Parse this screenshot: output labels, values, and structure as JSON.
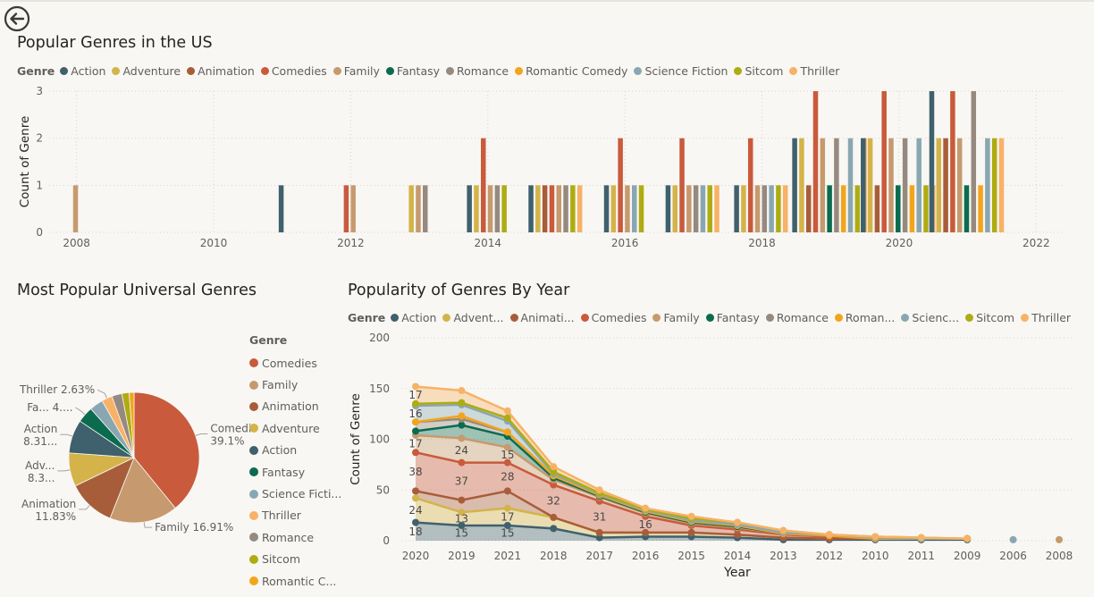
{
  "colors": {
    "Action": "#3f606d",
    "Adventure": "#d4b34a",
    "Animation": "#a85d3a",
    "Comedies": "#c95a3c",
    "Family": "#c69a6e",
    "Fantasy": "#0b6b4e",
    "Romance": "#968a80",
    "Romantic Comedy": "#f2a51c",
    "Science Fiction": "#89a7b2",
    "Sitcom": "#aeac12",
    "Thriller": "#f7b267"
  },
  "bar_chart": {
    "title": "Popular Genres in the US",
    "legend_label": "Genre",
    "legend": [
      "Action",
      "Adventure",
      "Animation",
      "Comedies",
      "Family",
      "Fantasy",
      "Romance",
      "Romantic Comedy",
      "Science Fiction",
      "Sitcom",
      "Thriller"
    ],
    "chart_data": {
      "type": "bar",
      "x_range": [
        2007.6,
        2022.4
      ],
      "x_ticks": [
        "2008",
        "2010",
        "2012",
        "2014",
        "2016",
        "2018",
        "2020",
        "2022"
      ],
      "y_ticks": [
        "0",
        "1",
        "2",
        "3"
      ],
      "ylim": [
        0,
        3
      ],
      "xlabel": "",
      "ylabel": "Count of Genre",
      "grid": true,
      "groups": [
        {
          "year": 2008,
          "bars": [
            {
              "genre": "Family",
              "value": 1
            }
          ]
        },
        {
          "year": 2011,
          "bars": [
            {
              "genre": "Action",
              "value": 1
            }
          ]
        },
        {
          "year": 2012,
          "bars": [
            {
              "genre": "Comedies",
              "value": 1
            },
            {
              "genre": "Family",
              "value": 1
            }
          ]
        },
        {
          "year": 2013,
          "bars": [
            {
              "genre": "Adventure",
              "value": 1
            },
            {
              "genre": "Family",
              "value": 1
            },
            {
              "genre": "Romance",
              "value": 1
            }
          ]
        },
        {
          "year": 2014,
          "bars": [
            {
              "genre": "Action",
              "value": 1
            },
            {
              "genre": "Adventure",
              "value": 1
            },
            {
              "genre": "Comedies",
              "value": 2
            },
            {
              "genre": "Family",
              "value": 1
            },
            {
              "genre": "Romance",
              "value": 1
            },
            {
              "genre": "Sitcom",
              "value": 1
            }
          ]
        },
        {
          "year": 2015,
          "bars": [
            {
              "genre": "Action",
              "value": 1
            },
            {
              "genre": "Adventure",
              "value": 1
            },
            {
              "genre": "Animation",
              "value": 1
            },
            {
              "genre": "Comedies",
              "value": 1
            },
            {
              "genre": "Family",
              "value": 1
            },
            {
              "genre": "Romance",
              "value": 1
            },
            {
              "genre": "Sitcom",
              "value": 1
            },
            {
              "genre": "Thriller",
              "value": 1
            }
          ]
        },
        {
          "year": 2016,
          "bars": [
            {
              "genre": "Action",
              "value": 1
            },
            {
              "genre": "Adventure",
              "value": 1
            },
            {
              "genre": "Comedies",
              "value": 2
            },
            {
              "genre": "Family",
              "value": 1
            },
            {
              "genre": "Science Fiction",
              "value": 1
            },
            {
              "genre": "Sitcom",
              "value": 1
            }
          ]
        },
        {
          "year": 2017,
          "bars": [
            {
              "genre": "Action",
              "value": 1
            },
            {
              "genre": "Adventure",
              "value": 1
            },
            {
              "genre": "Comedies",
              "value": 2
            },
            {
              "genre": "Family",
              "value": 1
            },
            {
              "genre": "Romance",
              "value": 1
            },
            {
              "genre": "Science Fiction",
              "value": 1
            },
            {
              "genre": "Sitcom",
              "value": 1
            },
            {
              "genre": "Thriller",
              "value": 1
            }
          ]
        },
        {
          "year": 2018,
          "bars": [
            {
              "genre": "Action",
              "value": 1
            },
            {
              "genre": "Adventure",
              "value": 1
            },
            {
              "genre": "Comedies",
              "value": 2
            },
            {
              "genre": "Family",
              "value": 1
            },
            {
              "genre": "Romance",
              "value": 1
            },
            {
              "genre": "Science Fiction",
              "value": 1
            },
            {
              "genre": "Sitcom",
              "value": 1
            },
            {
              "genre": "Thriller",
              "value": 1
            }
          ]
        },
        {
          "year": 2019,
          "bars": [
            {
              "genre": "Action",
              "value": 2
            },
            {
              "genre": "Adventure",
              "value": 2
            },
            {
              "genre": "Animation",
              "value": 1
            },
            {
              "genre": "Comedies",
              "value": 3
            },
            {
              "genre": "Family",
              "value": 2
            },
            {
              "genre": "Fantasy",
              "value": 1
            },
            {
              "genre": "Romance",
              "value": 2
            },
            {
              "genre": "Romantic Comedy",
              "value": 1
            },
            {
              "genre": "Science Fiction",
              "value": 2
            },
            {
              "genre": "Sitcom",
              "value": 1
            },
            {
              "genre": "Thriller",
              "value": 2
            }
          ]
        },
        {
          "year": 2020,
          "bars": [
            {
              "genre": "Action",
              "value": 2
            },
            {
              "genre": "Adventure",
              "value": 2
            },
            {
              "genre": "Animation",
              "value": 1
            },
            {
              "genre": "Comedies",
              "value": 3
            },
            {
              "genre": "Family",
              "value": 2
            },
            {
              "genre": "Fantasy",
              "value": 1
            },
            {
              "genre": "Romance",
              "value": 2
            },
            {
              "genre": "Romantic Comedy",
              "value": 1
            },
            {
              "genre": "Science Fiction",
              "value": 2
            },
            {
              "genre": "Sitcom",
              "value": 1
            },
            {
              "genre": "Thriller",
              "value": 1
            }
          ]
        },
        {
          "year": 2021,
          "bars": [
            {
              "genre": "Action",
              "value": 3
            },
            {
              "genre": "Adventure",
              "value": 2
            },
            {
              "genre": "Animation",
              "value": 2
            },
            {
              "genre": "Comedies",
              "value": 3
            },
            {
              "genre": "Family",
              "value": 2
            },
            {
              "genre": "Fantasy",
              "value": 1
            },
            {
              "genre": "Romance",
              "value": 3
            },
            {
              "genre": "Romantic Comedy",
              "value": 1
            },
            {
              "genre": "Science Fiction",
              "value": 2
            },
            {
              "genre": "Sitcom",
              "value": 2
            },
            {
              "genre": "Thriller",
              "value": 2
            }
          ]
        }
      ]
    }
  },
  "pie_chart": {
    "title": "Most Popular Universal Genres",
    "legend_label": "Genre",
    "legend_items": [
      "Comedies",
      "Family",
      "Animation",
      "Adventure",
      "Action",
      "Fantasy",
      "Science Ficti...",
      "Thriller",
      "Romance",
      "Sitcom",
      "Romantic C..."
    ],
    "chart_data": {
      "type": "pie",
      "slices": [
        {
          "genre": "Comedies",
          "value": 39.1,
          "label": "Comedies",
          "value_label": "39.1%"
        },
        {
          "genre": "Family",
          "value": 16.91,
          "label": "Family 16.91%",
          "value_label": ""
        },
        {
          "genre": "Animation",
          "value": 11.83,
          "label": "Animation",
          "value_label": "11.83%"
        },
        {
          "genre": "Adventure",
          "value": 8.3,
          "label": "Adv...",
          "value_label": "8.3..."
        },
        {
          "genre": "Action",
          "value": 8.31,
          "label": "Action",
          "value_label": "8.31..."
        },
        {
          "genre": "Fantasy",
          "value": 4.0,
          "label": "Fa... 4....",
          "value_label": ""
        },
        {
          "genre": "Science Fiction",
          "value": 3.4,
          "label": "",
          "value_label": ""
        },
        {
          "genre": "Thriller",
          "value": 2.63,
          "label": "Thriller 2.63%",
          "value_label": ""
        },
        {
          "genre": "Romance",
          "value": 2.5,
          "label": "",
          "value_label": ""
        },
        {
          "genre": "Sitcom",
          "value": 1.8,
          "label": "",
          "value_label": ""
        },
        {
          "genre": "Romantic Comedy",
          "value": 1.22,
          "label": "",
          "value_label": ""
        }
      ]
    }
  },
  "area_chart": {
    "title": "Popularity of Genres By Year",
    "legend_label": "Genre",
    "legend": [
      {
        "genre": "Action",
        "label": "Action"
      },
      {
        "genre": "Adventure",
        "label": "Advent..."
      },
      {
        "genre": "Animation",
        "label": "Animati..."
      },
      {
        "genre": "Comedies",
        "label": "Comedies"
      },
      {
        "genre": "Family",
        "label": "Family"
      },
      {
        "genre": "Fantasy",
        "label": "Fantasy"
      },
      {
        "genre": "Romance",
        "label": "Romance"
      },
      {
        "genre": "Romantic Comedy",
        "label": "Roman..."
      },
      {
        "genre": "Science Fiction",
        "label": "Scienc..."
      },
      {
        "genre": "Sitcom",
        "label": "Sitcom"
      },
      {
        "genre": "Thriller",
        "label": "Thriller"
      }
    ],
    "chart_data": {
      "type": "area",
      "stacked": true,
      "categories": [
        "2020",
        "2019",
        "2021",
        "2018",
        "2017",
        "2016",
        "2015",
        "2014",
        "2013",
        "2012",
        "2010",
        "2011",
        "2009",
        "2006",
        "2008"
      ],
      "xlabel": "Year",
      "ylabel": "Count of Genre",
      "ylim": [
        0,
        200
      ],
      "y_ticks": [
        "0",
        "50",
        "100",
        "150",
        "200"
      ],
      "grid": true,
      "series": [
        {
          "name": "Action",
          "values": [
            18,
            15,
            15,
            12,
            3,
            4,
            4,
            3,
            1,
            1,
            1,
            1,
            1,
            null,
            null
          ],
          "labels": [
            "18",
            "15",
            "15",
            "",
            "",
            "",
            "",
            "",
            "",
            "",
            "",
            "",
            "",
            "",
            ""
          ]
        },
        {
          "name": "Adventure",
          "values": [
            24,
            13,
            17,
            11,
            5,
            4,
            4,
            3,
            2,
            1,
            1,
            1,
            1,
            null,
            null
          ],
          "labels": [
            "24",
            "13",
            "17",
            "",
            "",
            "",
            "",
            "",
            "",
            "",
            "",
            "",
            "",
            "",
            ""
          ]
        },
        {
          "name": "Animation",
          "values": [
            7,
            12,
            17,
            0,
            0,
            0,
            0,
            0,
            0,
            0,
            0,
            0,
            0,
            null,
            null
          ],
          "labels": [
            "",
            "",
            "",
            "",
            "",
            "",
            "",
            "",
            "",
            "",
            "",
            "",
            "",
            "",
            ""
          ]
        },
        {
          "name": "Comedies",
          "values": [
            38,
            37,
            28,
            32,
            31,
            16,
            7,
            5,
            3,
            2,
            0,
            0,
            0,
            null,
            null
          ],
          "labels": [
            "38",
            "37",
            "28",
            "32",
            "31",
            "16",
            "",
            "",
            "",
            "",
            "",
            "",
            "",
            "",
            ""
          ]
        },
        {
          "name": "Family",
          "values": [
            17,
            24,
            15,
            5,
            4,
            3,
            2,
            2,
            1,
            1,
            0,
            0,
            0,
            null,
            1
          ],
          "labels": [
            "17",
            "24",
            "15",
            "",
            "",
            "",
            "",
            "",
            "",
            "",
            "",
            "",
            "",
            "",
            ""
          ]
        },
        {
          "name": "Fantasy",
          "values": [
            4,
            13,
            11,
            2,
            1,
            1,
            1,
            1,
            0,
            0,
            0,
            0,
            0,
            null,
            null
          ],
          "labels": [
            "",
            "",
            "",
            "",
            "",
            "",
            "",
            "",
            "",
            "",
            "",
            "",
            "",
            "",
            ""
          ]
        },
        {
          "name": "Romance",
          "values": [
            9,
            6,
            4,
            2,
            1,
            1,
            1,
            1,
            0,
            0,
            0,
            0,
            0,
            null,
            null
          ],
          "labels": [
            "",
            "",
            "",
            "",
            "",
            "",
            "",
            "",
            "",
            "",
            "",
            "",
            "",
            "",
            ""
          ]
        },
        {
          "name": "Romantic Comedy",
          "values": [
            0,
            3,
            0,
            0,
            0,
            0,
            0,
            0,
            0,
            0,
            0,
            0,
            0,
            null,
            null
          ],
          "labels": [
            "",
            "",
            "",
            "",
            "",
            "",
            "",
            "",
            "",
            "",
            "",
            "",
            "",
            "",
            ""
          ]
        },
        {
          "name": "Science Fiction",
          "values": [
            16,
            11,
            11,
            2,
            1,
            1,
            1,
            1,
            1,
            1,
            1,
            0,
            0,
            1,
            null
          ],
          "labels": [
            "16",
            "",
            "",
            "",
            "",
            "",
            "",
            "",
            "",
            "",
            "",
            "",
            "",
            "",
            ""
          ]
        },
        {
          "name": "Sitcom",
          "values": [
            2,
            2,
            3,
            2,
            1,
            1,
            2,
            2,
            2,
            0,
            1,
            1,
            0,
            null,
            null
          ],
          "labels": [
            "",
            "",
            "",
            "",
            "",
            "",
            "",
            "",
            "",
            "",
            "",
            "",
            "",
            "",
            ""
          ]
        },
        {
          "name": "Thriller",
          "values": [
            17,
            12,
            7,
            5,
            3,
            1,
            2,
            0,
            0,
            0,
            0,
            0,
            0,
            null,
            null
          ],
          "labels": [
            "17",
            "",
            "",
            "",
            "",
            "",
            "",
            "",
            "",
            "",
            "",
            "",
            "",
            "",
            ""
          ]
        }
      ]
    }
  }
}
